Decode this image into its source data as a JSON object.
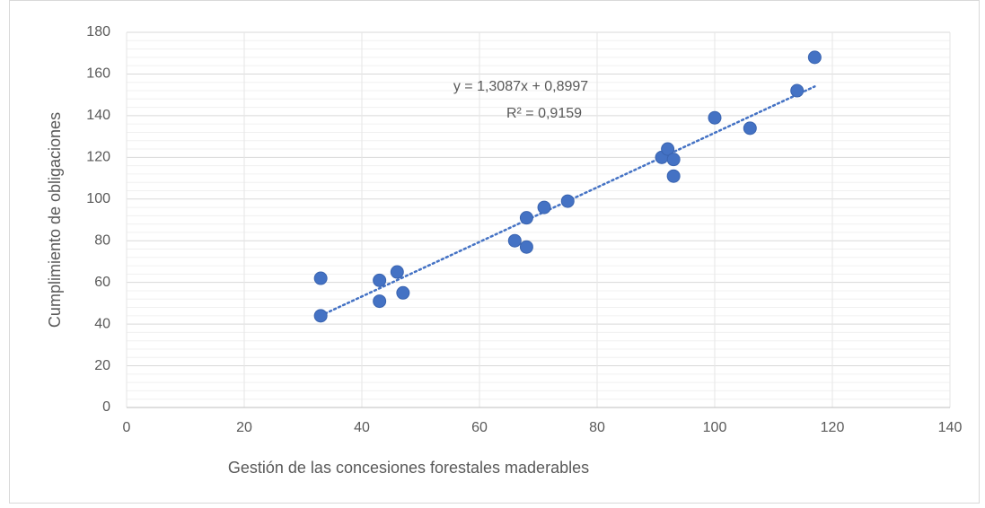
{
  "chart_data": {
    "type": "scatter",
    "x_label": "Gestión de las concesiones forestales maderables",
    "y_label": "Cumplimiento de obligaciones",
    "series": [
      {
        "color": "#4472c4",
        "x": [
          33,
          33,
          43,
          43,
          46,
          47,
          66,
          68,
          68,
          71,
          75,
          91,
          92,
          93,
          93,
          100,
          106,
          114,
          117
        ],
        "values": [
          62,
          44,
          61,
          51,
          65,
          55,
          80,
          77,
          91,
          96,
          99,
          120,
          124,
          119,
          111,
          139,
          134,
          152,
          168
        ]
      }
    ],
    "trendline": {
      "slope": 1.3087,
      "intercept": 0.8997,
      "equation": "y = 1,3087x + 0,8997",
      "r2": "R² = 0,9159"
    },
    "xlim": [
      0,
      140
    ],
    "xticks": [
      0,
      20,
      40,
      60,
      80,
      100,
      120,
      140
    ],
    "ylim": [
      0,
      180
    ],
    "yticks": [
      0,
      20,
      40,
      60,
      80,
      100,
      120,
      140,
      160,
      180
    ],
    "grid": true,
    "minor_grid": true
  }
}
